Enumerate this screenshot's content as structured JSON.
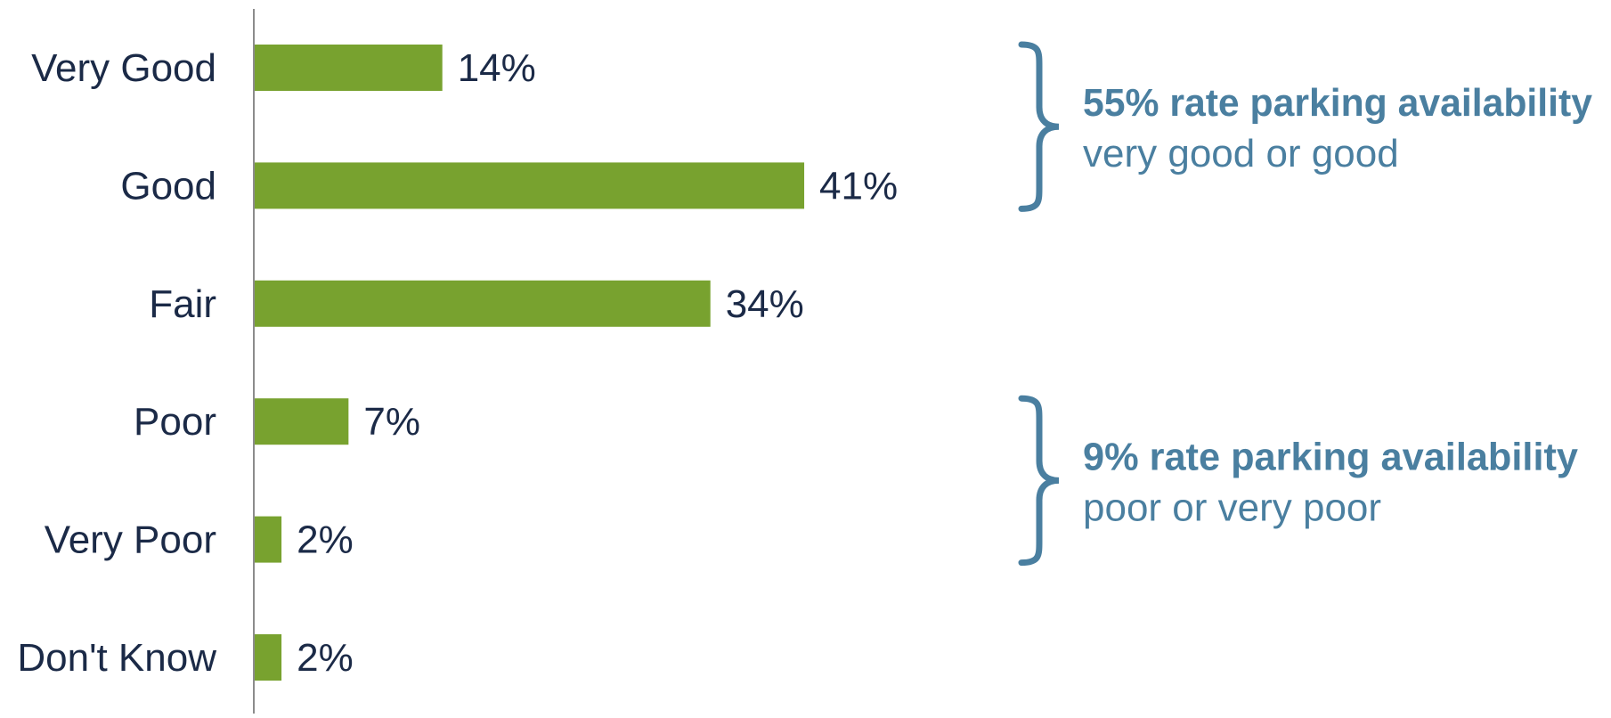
{
  "chart_data": {
    "type": "bar",
    "orientation": "horizontal",
    "categories": [
      "Very Good",
      "Good",
      "Fair",
      "Poor",
      "Very Poor",
      "Don't Know"
    ],
    "values": [
      14,
      41,
      34,
      7,
      2,
      2
    ],
    "value_labels": [
      "14%",
      "41%",
      "34%",
      "7%",
      "2%",
      "2%"
    ],
    "xlim": [
      0,
      100
    ],
    "grid": false,
    "legend": "none",
    "colors": {
      "bar": "#78a22f",
      "axis": "#8c8c8c",
      "text": "#1b2a47",
      "annotation": "#4a7fa0"
    },
    "annotations": [
      {
        "line1": "55% rate parking availability",
        "line2": "very good or good",
        "spans": [
          "Very Good",
          "Good"
        ]
      },
      {
        "line1": "9% rate parking  availability",
        "line2": "poor or very poor",
        "spans": [
          "Poor",
          "Very Poor"
        ]
      }
    ]
  }
}
